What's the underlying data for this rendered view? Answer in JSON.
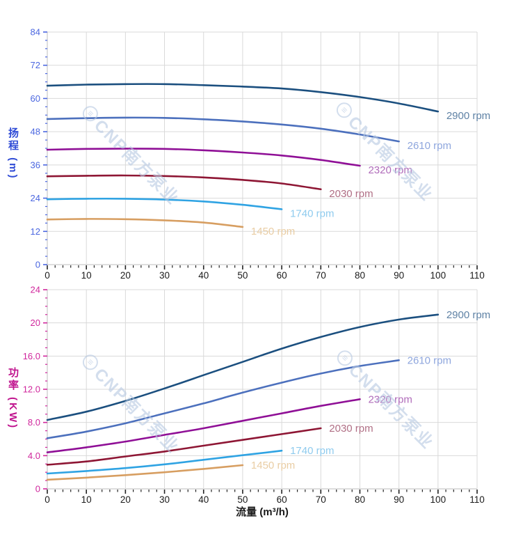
{
  "watermark": {
    "logo_glyph": "≡",
    "text": "CNP南方泵业",
    "color": "#b7c9e2"
  },
  "chart_data": [
    {
      "type": "line",
      "title": "",
      "xlabel": "流量 (m³/h)",
      "ylabel": "扬程 (m)",
      "ylabel_main": "扬程",
      "ylabel_unit": "(m)",
      "xlim": [
        0,
        110
      ],
      "ylim": [
        0,
        84
      ],
      "x_major": 10,
      "x_minor": 2,
      "y_major": 12,
      "y_minor": 3,
      "grid": true,
      "legend_position": "end-of-line-labels",
      "x_tick_labels": [
        "0",
        "10",
        "20",
        "30",
        "40",
        "50",
        "60",
        "70",
        "80",
        "90",
        "100",
        "110"
      ],
      "y_tick_labels": [
        "0",
        "12",
        "24",
        "36",
        "48",
        "60",
        "72",
        "84"
      ],
      "tick_label_color": "#4a66e0",
      "axis_title_color": "#2f4bd6",
      "x_tick_label_color": "#1a1a1a",
      "series": [
        {
          "name": "2900 rpm",
          "color": "#1b4f7f",
          "label_color": "#5f82a5",
          "x": [
            0,
            10,
            20,
            30,
            40,
            50,
            60,
            70,
            80,
            90,
            100
          ],
          "y": [
            64.6,
            65.0,
            65.2,
            65.2,
            64.8,
            64.3,
            63.6,
            62.3,
            60.5,
            58.2,
            55.3
          ]
        },
        {
          "name": "2610 rpm",
          "color": "#4c70bd",
          "label_color": "#8ea6dd",
          "x": [
            0,
            10,
            20,
            30,
            40,
            50,
            60,
            70,
            80,
            90
          ],
          "y": [
            52.6,
            52.9,
            53.1,
            53.0,
            52.5,
            51.7,
            50.6,
            49.1,
            47.0,
            44.5
          ]
        },
        {
          "name": "2320 rpm",
          "color": "#8f0f96",
          "label_color": "#b06cba",
          "x": [
            0,
            10,
            20,
            30,
            40,
            50,
            60,
            70,
            80
          ],
          "y": [
            41.5,
            41.8,
            41.9,
            41.8,
            41.3,
            40.5,
            39.4,
            37.8,
            35.7
          ]
        },
        {
          "name": "2030 rpm",
          "color": "#8e1634",
          "label_color": "#b06f85",
          "x": [
            0,
            10,
            20,
            30,
            40,
            50,
            60,
            70
          ],
          "y": [
            31.9,
            32.1,
            32.2,
            32.0,
            31.5,
            30.6,
            29.3,
            27.2
          ]
        },
        {
          "name": "1740 rpm",
          "color": "#2fa3e3",
          "label_color": "#8fcbee",
          "x": [
            0,
            10,
            20,
            30,
            40,
            50,
            60
          ],
          "y": [
            23.6,
            23.8,
            23.8,
            23.5,
            22.8,
            21.6,
            20.0
          ]
        },
        {
          "name": "1450 rpm",
          "color": "#d79e61",
          "label_color": "#e9cda4",
          "x": [
            0,
            10,
            20,
            30,
            40,
            50
          ],
          "y": [
            16.3,
            16.5,
            16.4,
            16.0,
            15.2,
            13.6
          ]
        }
      ]
    },
    {
      "type": "line",
      "title": "",
      "xlabel": "流量 (m³/h)",
      "ylabel": "功率 (KW)",
      "ylabel_main": "功率",
      "ylabel_unit": "(KW)",
      "xlim": [
        0,
        110
      ],
      "ylim": [
        0,
        24
      ],
      "x_major": 10,
      "x_minor": 2,
      "y_major": 4,
      "y_minor": 1,
      "grid": true,
      "legend_position": "end-of-line-labels",
      "x_tick_labels": [
        "0",
        "10",
        "20",
        "30",
        "40",
        "50",
        "60",
        "70",
        "80",
        "90",
        "100",
        "110"
      ],
      "y_tick_labels": [
        "0",
        "4.0",
        "8.0",
        "12.0",
        "16.0",
        "20",
        "24"
      ],
      "tick_label_color": "#d0269c",
      "axis_title_color": "#c0148e",
      "x_tick_label_color": "#1a1a1a",
      "series": [
        {
          "name": "2900 rpm",
          "color": "#1b4f7f",
          "label_color": "#5f82a5",
          "x": [
            0,
            10,
            20,
            30,
            40,
            50,
            60,
            70,
            80,
            90,
            100
          ],
          "y": [
            8.3,
            9.3,
            10.6,
            12.1,
            13.7,
            15.3,
            16.9,
            18.3,
            19.5,
            20.4,
            21.0
          ]
        },
        {
          "name": "2610 rpm",
          "color": "#4c70bd",
          "label_color": "#8ea6dd",
          "x": [
            0,
            10,
            20,
            30,
            40,
            50,
            60,
            70,
            80,
            90
          ],
          "y": [
            6.1,
            6.9,
            7.9,
            9.1,
            10.3,
            11.6,
            12.8,
            13.9,
            14.8,
            15.5
          ]
        },
        {
          "name": "2320 rpm",
          "color": "#8f0f96",
          "label_color": "#b06cba",
          "x": [
            0,
            10,
            20,
            30,
            40,
            50,
            60,
            70,
            80
          ],
          "y": [
            4.4,
            5.0,
            5.7,
            6.5,
            7.3,
            8.2,
            9.1,
            10.0,
            10.8
          ]
        },
        {
          "name": "2030 rpm",
          "color": "#8e1634",
          "label_color": "#b06f85",
          "x": [
            0,
            10,
            20,
            30,
            40,
            50,
            60,
            70
          ],
          "y": [
            2.9,
            3.3,
            3.9,
            4.5,
            5.2,
            5.9,
            6.6,
            7.3
          ]
        },
        {
          "name": "1740 rpm",
          "color": "#2fa3e3",
          "label_color": "#8fcbee",
          "x": [
            0,
            10,
            20,
            30,
            40,
            50,
            60
          ],
          "y": [
            1.85,
            2.15,
            2.5,
            2.95,
            3.5,
            4.05,
            4.6
          ]
        },
        {
          "name": "1450 rpm",
          "color": "#d79e61",
          "label_color": "#e9cda4",
          "x": [
            0,
            10,
            20,
            30,
            40,
            50
          ],
          "y": [
            1.1,
            1.35,
            1.65,
            2.0,
            2.4,
            2.85
          ]
        }
      ]
    }
  ]
}
